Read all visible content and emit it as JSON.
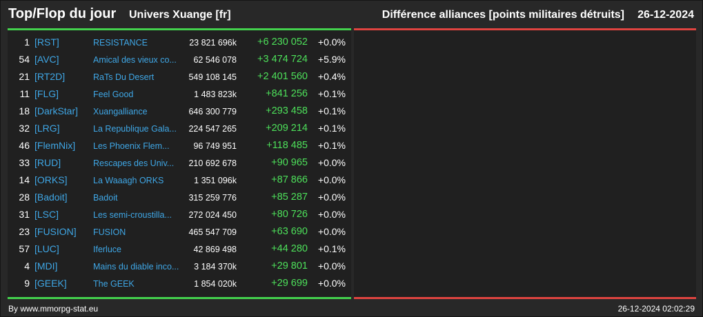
{
  "header": {
    "title": "Top/Flop du jour",
    "universe": "Univers Xuange [fr]",
    "subtitle": "Différence alliances [points militaires détruits]",
    "date": "26-12-2024"
  },
  "colors": {
    "top_accent": "#43d24d",
    "flop_accent": "#e04440",
    "link": "#3fa7e6",
    "positive": "#4de05a"
  },
  "top_rows": [
    {
      "rank": "1",
      "tag": "[RST]",
      "name": "RESISTANCE",
      "points": "23 821 696k",
      "diff": "+6 230 052",
      "pct": "+0.0%"
    },
    {
      "rank": "54",
      "tag": "[AVC]",
      "name": "Amical des vieux co...",
      "points": "62 546 078",
      "diff": "+3 474 724",
      "pct": "+5.9%"
    },
    {
      "rank": "21",
      "tag": "[RT2D]",
      "name": "RaTs Du Desert",
      "points": "549 108 145",
      "diff": "+2 401 560",
      "pct": "+0.4%"
    },
    {
      "rank": "11",
      "tag": "[FLG]",
      "name": "Feel Good",
      "points": "1 483 823k",
      "diff": "+841 256",
      "pct": "+0.1%"
    },
    {
      "rank": "18",
      "tag": "[DarkStar]",
      "name": "Xuangalliance",
      "points": "646 300 779",
      "diff": "+293 458",
      "pct": "+0.1%"
    },
    {
      "rank": "32",
      "tag": "[LRG]",
      "name": "La Republique Gala...",
      "points": "224 547 265",
      "diff": "+209 214",
      "pct": "+0.1%"
    },
    {
      "rank": "46",
      "tag": "[FlemNix]",
      "name": "Les Phoenix Flem...",
      "points": "96 749 951",
      "diff": "+118 485",
      "pct": "+0.1%"
    },
    {
      "rank": "33",
      "tag": "[RUD]",
      "name": "Rescapes des Univ...",
      "points": "210 692 678",
      "diff": "+90 965",
      "pct": "+0.0%"
    },
    {
      "rank": "14",
      "tag": "[ORKS]",
      "name": "La Waaagh ORKS",
      "points": "1 351 096k",
      "diff": "+87 866",
      "pct": "+0.0%"
    },
    {
      "rank": "28",
      "tag": "[Badoit]",
      "name": "Badoit",
      "points": "315 259 776",
      "diff": "+85 287",
      "pct": "+0.0%"
    },
    {
      "rank": "31",
      "tag": "[LSC]",
      "name": "Les semi-croustilla...",
      "points": "272 024 450",
      "diff": "+80 726",
      "pct": "+0.0%"
    },
    {
      "rank": "23",
      "tag": "[FUSION]",
      "name": "FUSION",
      "points": "465 547 709",
      "diff": "+63 690",
      "pct": "+0.0%"
    },
    {
      "rank": "57",
      "tag": "[LUC]",
      "name": "Iferluce",
      "points": "42 869 498",
      "diff": "+44 280",
      "pct": "+0.1%"
    },
    {
      "rank": "4",
      "tag": "[MDI]",
      "name": "Mains du diable inco...",
      "points": "3 184 370k",
      "diff": "+29 801",
      "pct": "+0.0%"
    },
    {
      "rank": "9",
      "tag": "[GEEK]",
      "name": "The GEEK",
      "points": "1 854 020k",
      "diff": "+29 699",
      "pct": "+0.0%"
    }
  ],
  "flop_rows": [],
  "footer": {
    "source": "By www.mmorpg-stat.eu",
    "timestamp": "26-12-2024 02:02:29"
  }
}
